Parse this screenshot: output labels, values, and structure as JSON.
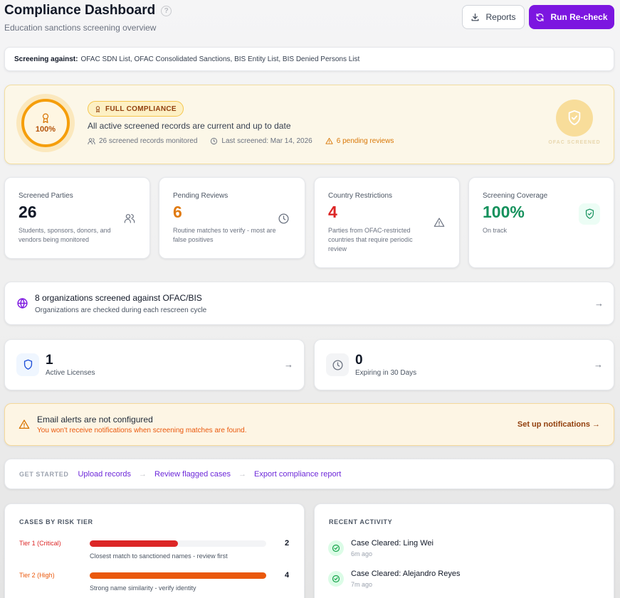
{
  "header": {
    "title": "Compliance Dashboard",
    "subtitle": "Education sanctions screening overview",
    "reports_label": "Reports",
    "recheck_label": "Run Re-check"
  },
  "screening": {
    "label": "Screening against:",
    "lists": "OFAC SDN List, OFAC Consolidated Sanctions, BIS Entity List, BIS Denied Persons List"
  },
  "compliance": {
    "percent": "100%",
    "badge": "FULL COMPLIANCE",
    "message": "All active screened records are current and up to date",
    "records_monitored": "26 screened records monitored",
    "last_screened": "Last screened: Mar 14, 2026",
    "pending": "6 pending reviews",
    "seal_label": "OFAC SCREENED"
  },
  "stats": [
    {
      "label": "Screened Parties",
      "value": "26",
      "desc": "Students, sponsors, donors, and vendors being monitored",
      "color": "#111827",
      "icon": "users-icon"
    },
    {
      "label": "Pending Reviews",
      "value": "6",
      "desc": "Routine matches to verify - most are false positives",
      "color": "#e07a10",
      "icon": "clock-icon"
    },
    {
      "label": "Country Restrictions",
      "value": "4",
      "desc": "Parties from OFAC-restricted countries that require periodic review",
      "color": "#dc2626",
      "icon": "alert-triangle-icon"
    },
    {
      "label": "Screening Coverage",
      "value": "100%",
      "desc": "On track",
      "color": "#15915c",
      "icon": "shield-check-icon"
    }
  ],
  "orgs": {
    "title": "8 organizations screened against OFAC/BIS",
    "subtitle": "Organizations are checked during each rescreen cycle"
  },
  "licenses": {
    "active_value": "1",
    "active_label": "Active Licenses",
    "expiring_value": "0",
    "expiring_label": "Expiring in 30 Days"
  },
  "alert": {
    "title": "Email alerts are not configured",
    "subtitle": "You won't receive notifications when screening matches are found.",
    "link": "Set up notifications →"
  },
  "get_started": {
    "label": "GET STARTED",
    "links": [
      "Upload records",
      "Review flagged cases",
      "Export compliance report"
    ]
  },
  "risk_tiers": {
    "title": "CASES BY RISK TIER",
    "tiers": [
      {
        "name": "Tier 1 (Critical)",
        "count": "2",
        "fraction": 0.5,
        "desc": "Closest match to sanctioned names - review first",
        "color": "#dc2626"
      },
      {
        "name": "Tier 2 (High)",
        "count": "4",
        "fraction": 1.0,
        "desc": "Strong name similarity - verify identity",
        "color": "#ea580c"
      }
    ]
  },
  "activity": {
    "title": "RECENT ACTIVITY",
    "items": [
      {
        "title": "Case Cleared: Ling Wei",
        "time": "6m ago"
      },
      {
        "title": "Case Cleared: Alejandro Reyes",
        "time": "7m ago"
      }
    ]
  }
}
